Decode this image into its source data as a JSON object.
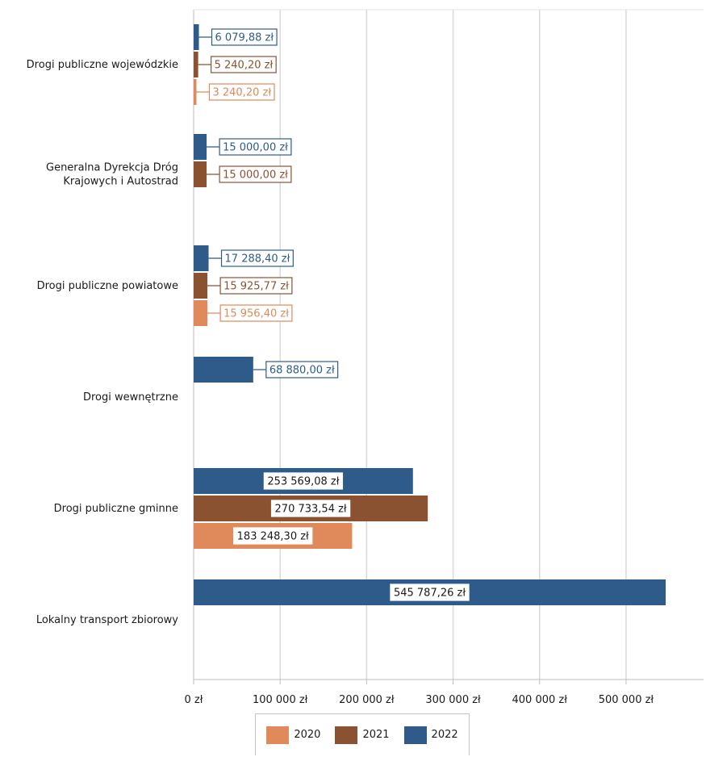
{
  "chart_data": {
    "type": "bar",
    "orientation": "horizontal",
    "title": "",
    "xlabel": "",
    "ylabel": "",
    "xlim": [
      0,
      545787.26
    ],
    "grid": true,
    "legend_position": "bottom",
    "categories": [
      "Drogi publiczne wojewódzkie",
      "Generalna Dyrekcja Dróg Krajowych i Autostrad",
      "Drogi publiczne powiatowe",
      "Drogi wewnętrzne",
      "Drogi publiczne gminne",
      "Lokalny transport zbiorowy"
    ],
    "category_lines": [
      [
        "Drogi publiczne wojewódzkie"
      ],
      [
        "Generalna Dyrekcja Dróg",
        "Krajowych i Autostrad"
      ],
      [
        "Drogi publiczne powiatowe"
      ],
      [
        "Drogi wewnętrzne"
      ],
      [
        "Drogi publiczne gminne"
      ],
      [
        "Lokalny transport zbiorowy"
      ]
    ],
    "series": [
      {
        "name": "2022",
        "color": "#2e5b8a",
        "values": [
          6079.88,
          15000.0,
          17288.4,
          68880.0,
          253569.08,
          545787.26
        ],
        "labels": [
          "6 079,88 zł",
          "15 000,00 zł",
          "17 288,40 zł",
          "68 880,00 zł",
          "253 569,08 zł",
          "545 787,26 zł"
        ]
      },
      {
        "name": "2021",
        "color": "#8b5232",
        "values": [
          5240.2,
          15000.0,
          15925.77,
          null,
          270733.54,
          null
        ],
        "labels": [
          "5 240,20 zł",
          "15 000,00 zł",
          "15 925,77 zł",
          null,
          "270 733,54 zł",
          null
        ]
      },
      {
        "name": "2020",
        "color": "#e0895a",
        "values": [
          3240.2,
          null,
          15956.4,
          null,
          183248.3,
          null
        ],
        "labels": [
          "3 240,20 zł",
          null,
          "15 956,40 zł",
          null,
          "183 248,30 zł",
          null
        ]
      }
    ],
    "ticks": [
      {
        "value": 0,
        "label": "0 zł"
      },
      {
        "value": 100000,
        "label": "100 000 zł"
      },
      {
        "value": 200000,
        "label": "200 000 zł"
      },
      {
        "value": 300000,
        "label": "300 000 zł"
      },
      {
        "value": 400000,
        "label": "400 000 zł"
      },
      {
        "value": 500000,
        "label": "500 000 zł"
      }
    ]
  },
  "legend": {
    "items": [
      {
        "label": "2020",
        "color": "#e0895a"
      },
      {
        "label": "2021",
        "color": "#8b5232"
      },
      {
        "label": "2022",
        "color": "#2e5b8a"
      }
    ]
  }
}
